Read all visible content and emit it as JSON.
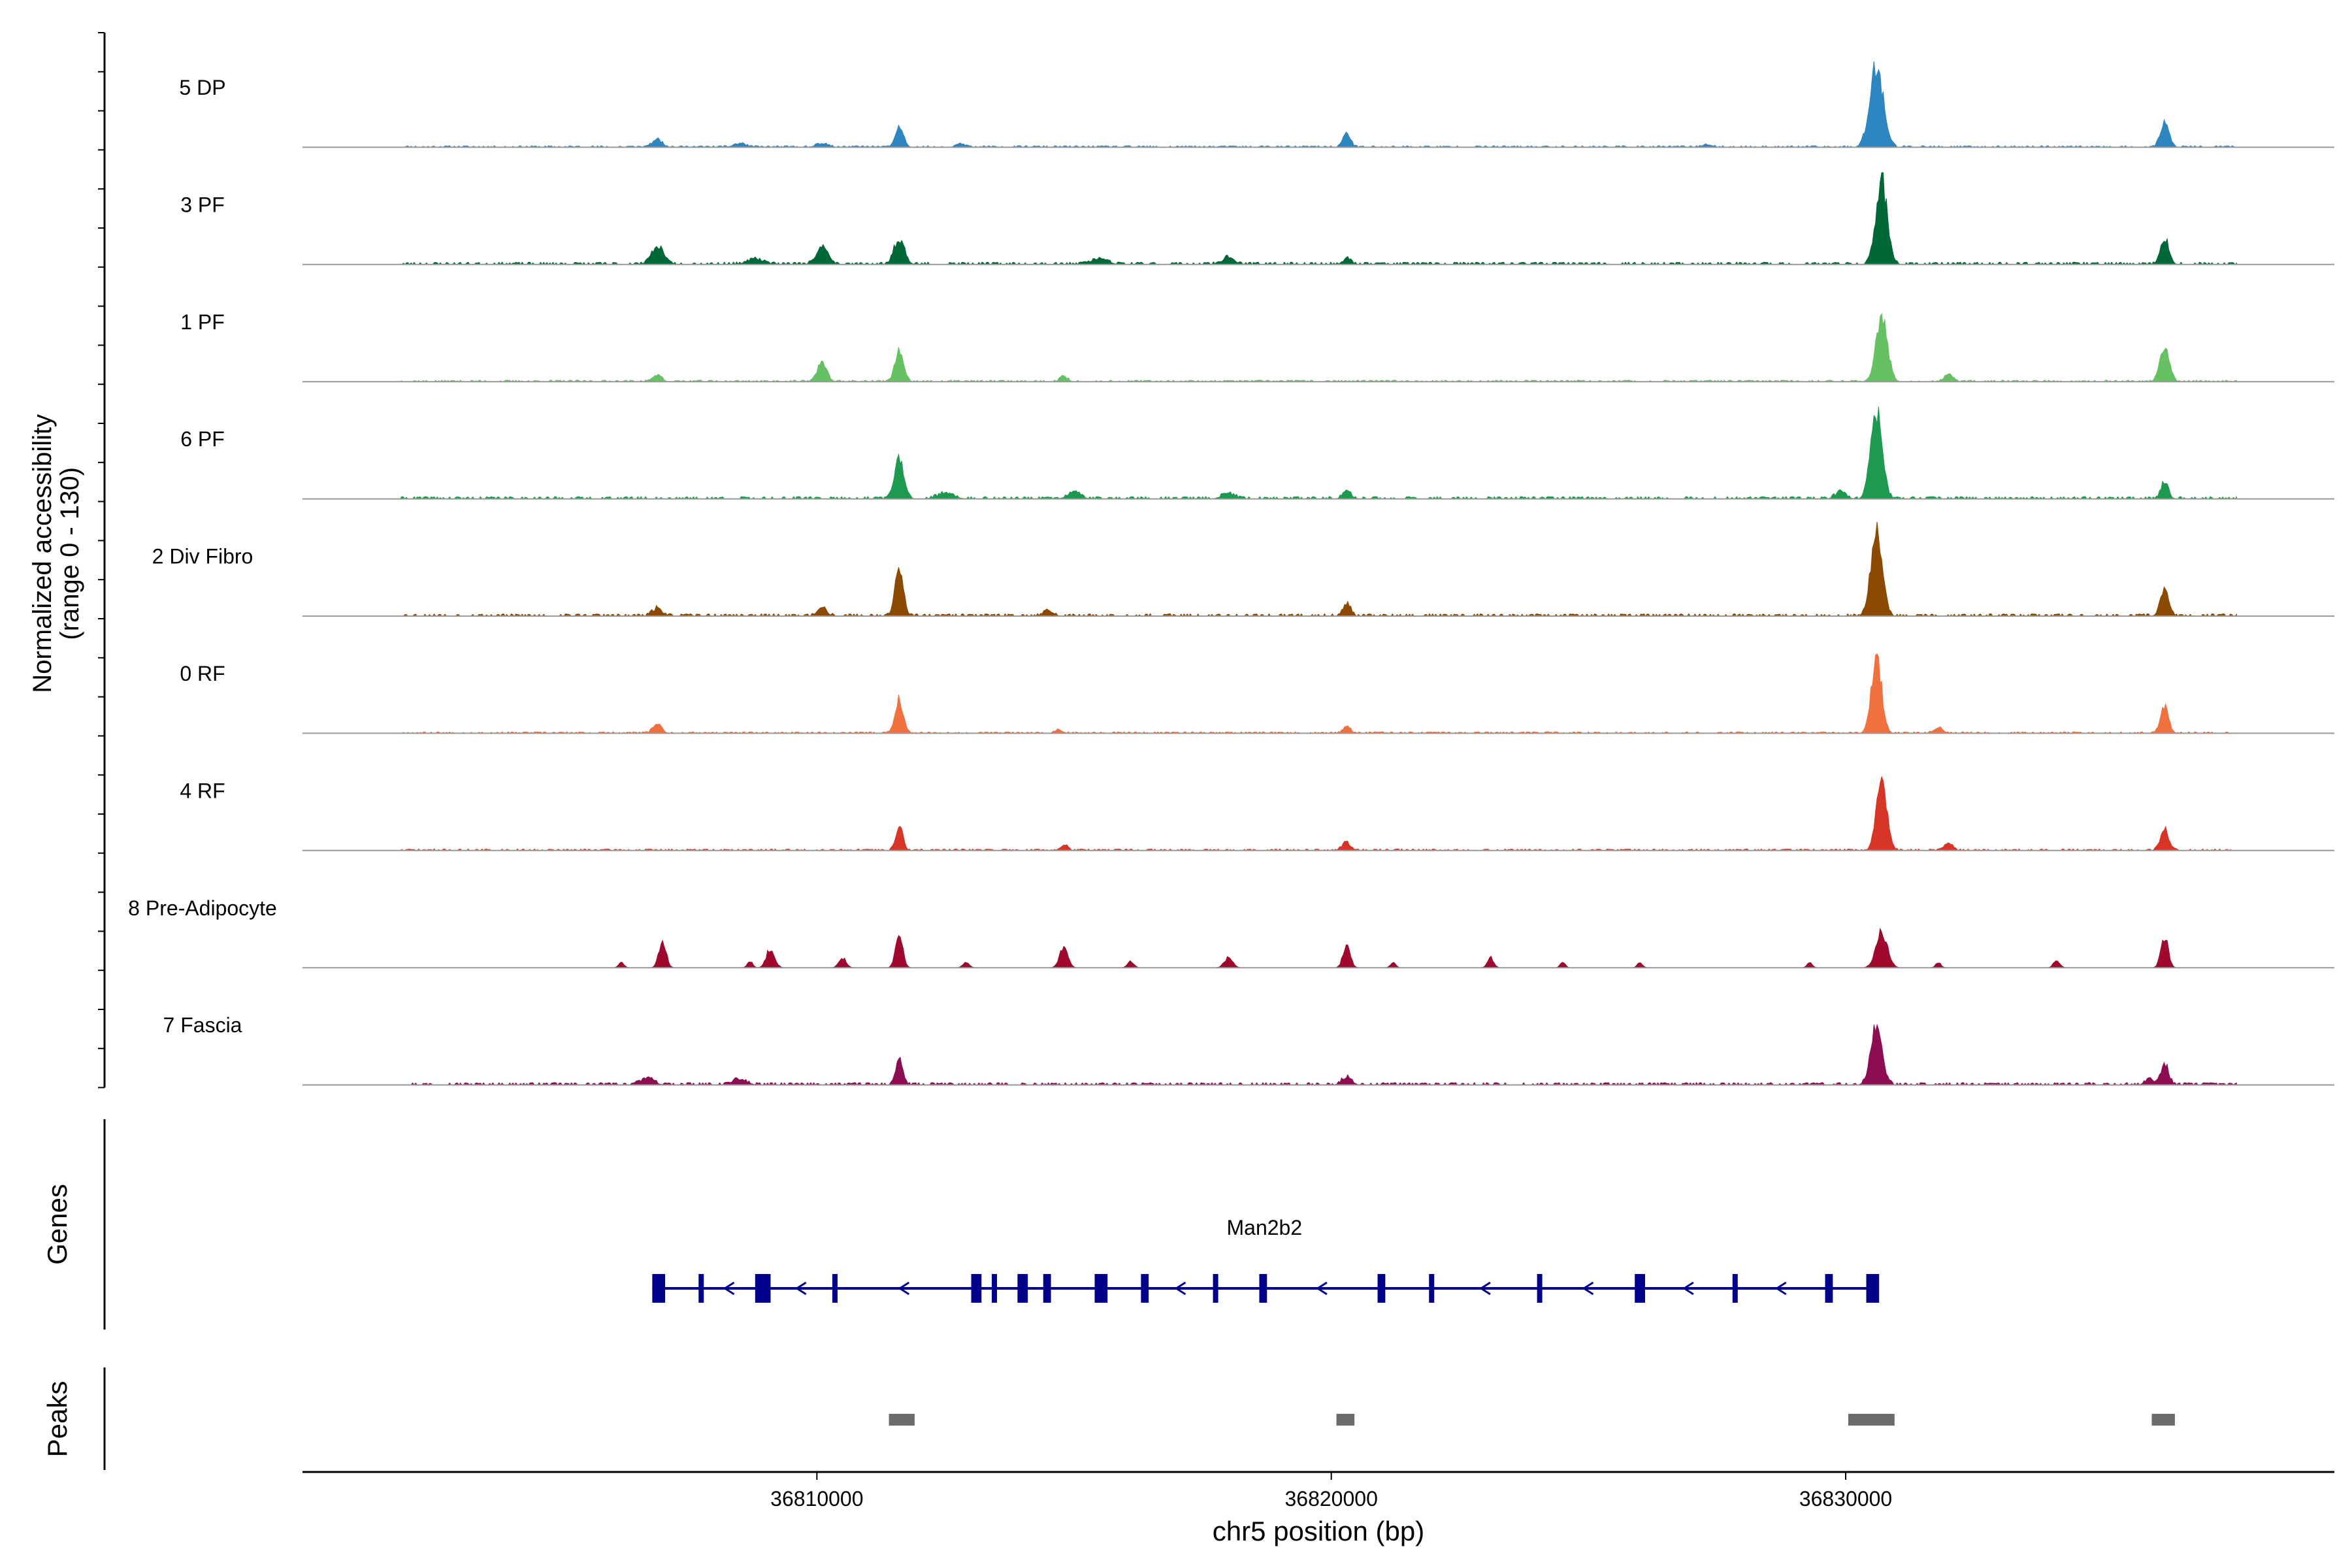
{
  "chart_data": {
    "type": "area",
    "title": "",
    "ylabel_line1": "Normalized accessibility",
    "ylabel_line2": "(range 0 - 130)",
    "xlabel": "chr5 position (bp)",
    "xlim": [
      36800000,
      36839500
    ],
    "ylim": [
      0,
      130
    ],
    "x_ticks": [
      36810000,
      36820000,
      36830000
    ],
    "x_tick_labels": [
      "36810000",
      "36820000",
      "36830000"
    ],
    "track_labels": {
      "genes": "Genes",
      "peaks": "Peaks"
    },
    "coverage_extent": [
      36801900,
      36837600
    ],
    "series": [
      {
        "name": "5 DP",
        "color": "#2E86C1",
        "noise": 2,
        "seed": 11,
        "peaks": [
          [
            36806900,
            12,
            90
          ],
          [
            36808500,
            5,
            120
          ],
          [
            36810100,
            5,
            120
          ],
          [
            36811600,
            28,
            80
          ],
          [
            36812800,
            4,
            90
          ],
          [
            36820300,
            22,
            70
          ],
          [
            36827300,
            4,
            90
          ],
          [
            36830600,
            125,
            130
          ],
          [
            36836200,
            38,
            80
          ]
        ]
      },
      {
        "name": "3 PF",
        "color": "#006837",
        "noise": 3,
        "seed": 23,
        "peaks": [
          [
            36806900,
            25,
            120
          ],
          [
            36808800,
            8,
            150
          ],
          [
            36810100,
            28,
            110
          ],
          [
            36811600,
            38,
            100
          ],
          [
            36815500,
            8,
            150
          ],
          [
            36818000,
            10,
            120
          ],
          [
            36820300,
            8,
            80
          ],
          [
            36830700,
            125,
            110
          ],
          [
            36836200,
            40,
            80
          ]
        ]
      },
      {
        "name": "1 PF",
        "color": "#66C163",
        "noise": 2,
        "seed": 37,
        "peaks": [
          [
            36806900,
            10,
            80
          ],
          [
            36810100,
            28,
            90
          ],
          [
            36811600,
            45,
            80
          ],
          [
            36814800,
            8,
            70
          ],
          [
            36830700,
            100,
            110
          ],
          [
            36832000,
            10,
            80
          ],
          [
            36836200,
            50,
            90
          ]
        ]
      },
      {
        "name": "6 PF",
        "color": "#1E9950",
        "noise": 3,
        "seed": 41,
        "peaks": [
          [
            36811600,
            58,
            90
          ],
          [
            36812500,
            8,
            150
          ],
          [
            36815000,
            10,
            120
          ],
          [
            36818000,
            8,
            120
          ],
          [
            36820300,
            10,
            80
          ],
          [
            36829900,
            10,
            100
          ],
          [
            36830600,
            130,
            110
          ],
          [
            36836200,
            25,
            70
          ]
        ]
      },
      {
        "name": "2 Div Fibro",
        "color": "#8B4A00",
        "noise": 3,
        "seed": 53,
        "peaks": [
          [
            36806900,
            12,
            90
          ],
          [
            36810100,
            12,
            90
          ],
          [
            36811600,
            68,
            80
          ],
          [
            36814500,
            8,
            90
          ],
          [
            36820300,
            20,
            70
          ],
          [
            36830600,
            130,
            110
          ],
          [
            36836200,
            38,
            80
          ]
        ]
      },
      {
        "name": "0 RF",
        "color": "#F0703E",
        "noise": 2,
        "seed": 67,
        "peaks": [
          [
            36806900,
            14,
            80
          ],
          [
            36811600,
            50,
            80
          ],
          [
            36814700,
            6,
            70
          ],
          [
            36820300,
            10,
            70
          ],
          [
            36830600,
            110,
            100
          ],
          [
            36831800,
            8,
            90
          ],
          [
            36836200,
            38,
            80
          ]
        ]
      },
      {
        "name": "4 RF",
        "color": "#D73527",
        "noise": 2,
        "seed": 71,
        "peaks": [
          [
            36811600,
            35,
            70
          ],
          [
            36814800,
            8,
            70
          ],
          [
            36820300,
            12,
            80
          ],
          [
            36830700,
            100,
            100
          ],
          [
            36832000,
            10,
            80
          ],
          [
            36836200,
            32,
            80
          ]
        ]
      },
      {
        "name": "8 Pre-Adipocyte",
        "color": "#A0082E",
        "noise": 0,
        "seed": 83,
        "peaks": [
          [
            36807000,
            40,
            70
          ],
          [
            36809100,
            30,
            80
          ],
          [
            36810500,
            15,
            70
          ],
          [
            36811600,
            48,
            70
          ],
          [
            36814800,
            30,
            80
          ],
          [
            36818000,
            15,
            80
          ],
          [
            36820300,
            35,
            70
          ],
          [
            36823100,
            15,
            60
          ],
          [
            36830700,
            55,
            110
          ],
          [
            36836200,
            48,
            70
          ],
          [
            36834100,
            12,
            60
          ],
          [
            36812900,
            8,
            60
          ],
          [
            36806200,
            8,
            50
          ],
          [
            36821200,
            8,
            50
          ],
          [
            36824500,
            8,
            50
          ],
          [
            36826000,
            8,
            50
          ],
          [
            36829300,
            8,
            50
          ],
          [
            36831800,
            8,
            50
          ],
          [
            36816100,
            10,
            60
          ],
          [
            36808700,
            10,
            50
          ]
        ]
      },
      {
        "name": "7 Fascia",
        "color": "#8E0C52",
        "noise": 3,
        "seed": 97,
        "peaks": [
          [
            36806700,
            10,
            120
          ],
          [
            36808500,
            8,
            130
          ],
          [
            36811600,
            35,
            70
          ],
          [
            36820300,
            12,
            90
          ],
          [
            36830600,
            88,
            110
          ],
          [
            36835900,
            8,
            80
          ],
          [
            36836200,
            30,
            80
          ]
        ]
      }
    ],
    "gene": {
      "name": "Man2b2",
      "strand": "-",
      "start": 36806800,
      "end": 36830600,
      "exons": [
        [
          36806800,
          36807050
        ],
        [
          36807700,
          36807800
        ],
        [
          36808800,
          36809100
        ],
        [
          36810300,
          36810380
        ],
        [
          36813000,
          36813200
        ],
        [
          36813400,
          36813480
        ],
        [
          36813900,
          36814100
        ],
        [
          36814400,
          36814550
        ],
        [
          36815400,
          36815650
        ],
        [
          36816300,
          36816450
        ],
        [
          36817700,
          36817800
        ],
        [
          36818600,
          36818750
        ],
        [
          36820900,
          36821050
        ],
        [
          36821900,
          36822000
        ],
        [
          36824000,
          36824080
        ],
        [
          36825900,
          36826100
        ],
        [
          36827800,
          36827900
        ],
        [
          36829600,
          36829750
        ],
        [
          36830400,
          36830650
        ]
      ]
    },
    "peaks_track": [
      [
        36811400,
        36811900
      ],
      [
        36820100,
        36820450
      ],
      [
        36830050,
        36830950
      ],
      [
        36835950,
        36836400
      ]
    ]
  }
}
